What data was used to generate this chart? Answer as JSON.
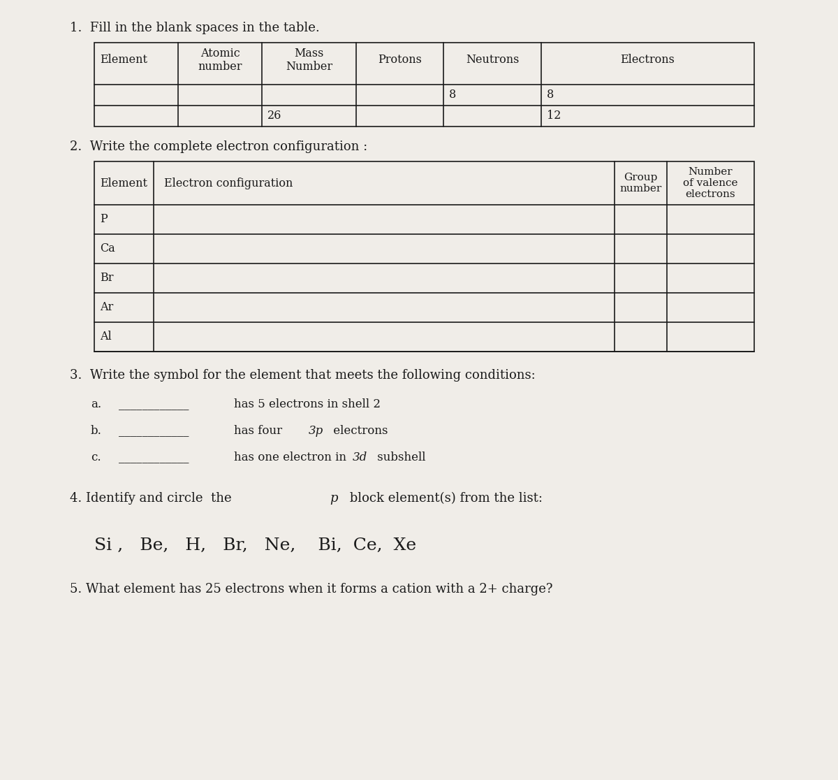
{
  "bg_color": "#f0ede8",
  "text_color": "#1a1a1a",
  "title1": "1.  Fill in the blank spaces in the table.",
  "title2": "2.  Write the complete electron configuration :",
  "title3": "3.  Write the symbol for the element that meets the following conditions:",
  "title5": "5. What element has 25 electrons when it forms a cation with a 2+ charge?",
  "table1_headers": [
    "Element",
    "Atomic\nnumber",
    "Mass\nNumber",
    "Protons",
    "Neutrons",
    "Electrons"
  ],
  "table1_row1": [
    "",
    "",
    "",
    "",
    "8",
    "8"
  ],
  "table1_row2": [
    "",
    "",
    "26",
    "",
    "",
    "12"
  ],
  "table2_elements": [
    "P",
    "Ca",
    "Br",
    "Ar",
    "Al"
  ],
  "font_size_title": 13,
  "font_size_body": 12,
  "font_size_table": 11.5,
  "font_size_elements": 18
}
